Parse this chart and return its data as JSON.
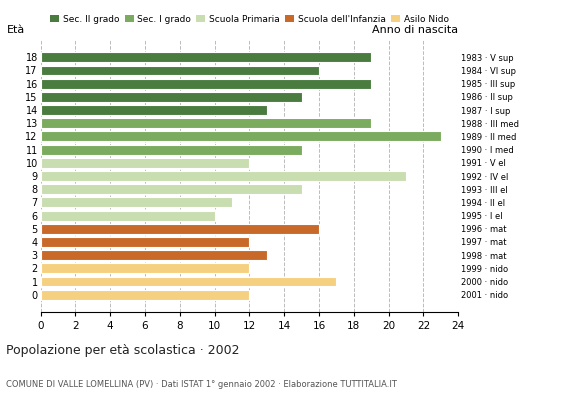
{
  "title": "Popolazione per età scolastica · 2002",
  "subtitle": "COMUNE DI VALLE LOMELLINA (PV) · Dati ISTAT 1° gennaio 2002 · Elaborazione TUTTITALIA.IT",
  "ylabel": "Età",
  "ylabel_right": "Anno di nascita",
  "xlim": [
    0,
    24
  ],
  "xticks": [
    0,
    2,
    4,
    6,
    8,
    10,
    12,
    14,
    16,
    18,
    20,
    22,
    24
  ],
  "ages": [
    18,
    17,
    16,
    15,
    14,
    13,
    12,
    11,
    10,
    9,
    8,
    7,
    6,
    5,
    4,
    3,
    2,
    1,
    0
  ],
  "values": [
    19,
    16,
    19,
    15,
    13,
    19,
    23,
    15,
    12,
    21,
    15,
    11,
    10,
    16,
    12,
    13,
    12,
    17,
    12
  ],
  "right_labels": [
    "1983 · V sup",
    "1984 · VI sup",
    "1985 · III sup",
    "1986 · II sup",
    "1987 · I sup",
    "1988 · III med",
    "1989 · II med",
    "1990 · I med",
    "1991 · V el",
    "1992 · IV el",
    "1993 · III el",
    "1994 · II el",
    "1995 · I el",
    "1996 · mat",
    "1997 · mat",
    "1998 · mat",
    "1999 · nido",
    "2000 · nido",
    "2001 · nido"
  ],
  "bar_colors": [
    "#4a7c3f",
    "#4a7c3f",
    "#4a7c3f",
    "#4a7c3f",
    "#4a7c3f",
    "#7aab5e",
    "#7aab5e",
    "#7aab5e",
    "#c8ddb0",
    "#c8ddb0",
    "#c8ddb0",
    "#c8ddb0",
    "#c8ddb0",
    "#c8692a",
    "#c8692a",
    "#c8692a",
    "#f5d080",
    "#f5d080",
    "#f5d080"
  ],
  "legend_labels": [
    "Sec. II grado",
    "Sec. I grado",
    "Scuola Primaria",
    "Scuola dell'Infanzia",
    "Asilo Nido"
  ],
  "legend_colors": [
    "#4a7c3f",
    "#7aab5e",
    "#c8ddb0",
    "#c8692a",
    "#f5d080"
  ],
  "bg_color": "#ffffff",
  "grid_color": "#bbbbbb",
  "bar_height": 0.75
}
